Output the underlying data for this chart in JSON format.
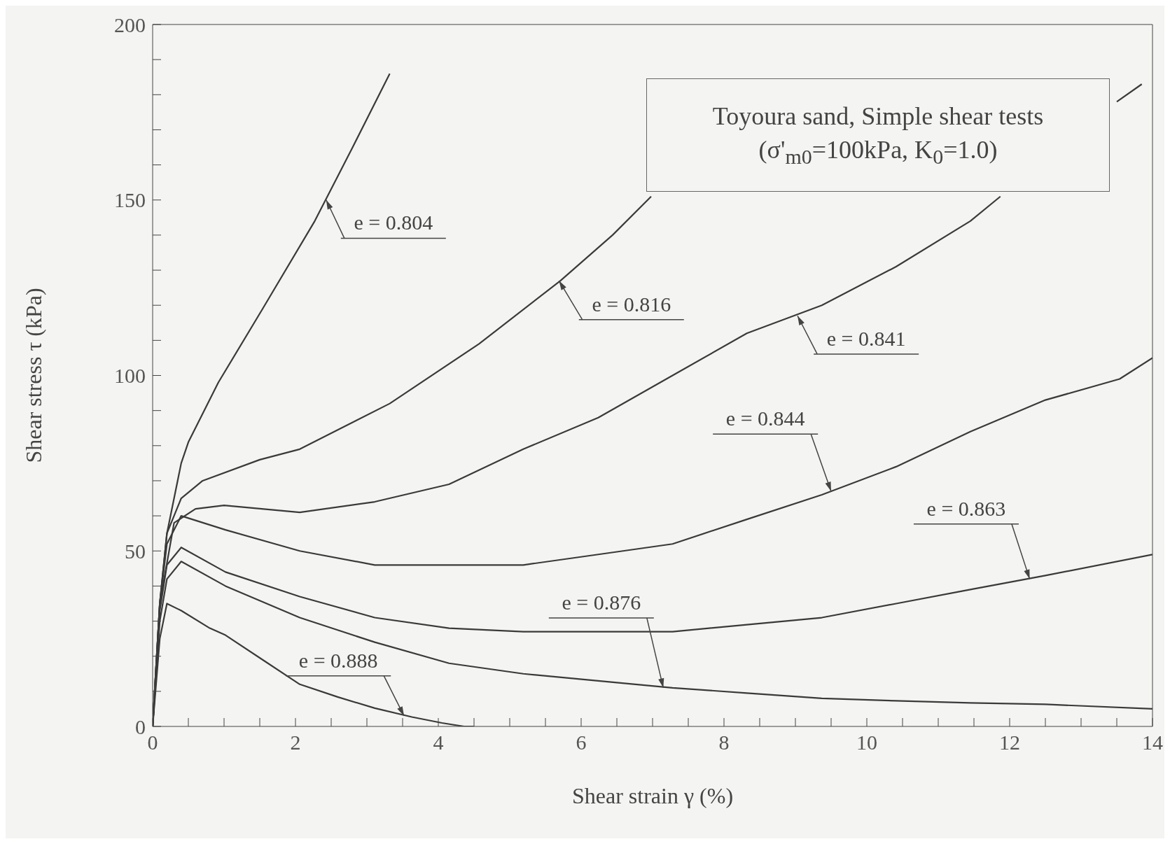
{
  "chart_data": {
    "type": "line",
    "title": "Toyoura sand, Simple shear tests",
    "subtitle": "(σ'$_{m0}$=100kPa, K$_{0}$=1.0)",
    "xlabel": "Shear strain γ (%)",
    "ylabel": "Shear stress τ (kPa)",
    "xlim": [
      0,
      14
    ],
    "ylim": [
      0,
      200
    ],
    "xticks": [
      0,
      {
        "value": 0.5,
        "label": null
      },
      {
        "value": 1,
        "label": null
      },
      {
        "value": 1.5,
        "label": null
      },
      2,
      {
        "value": 2.5,
        "label": null
      },
      {
        "value": 3,
        "label": null
      },
      {
        "value": 3.5,
        "label": null
      },
      4,
      {
        "value": 4.5,
        "label": null
      },
      {
        "value": 5,
        "label": null
      },
      {
        "value": 5.5,
        "label": null
      },
      6,
      {
        "value": 6.5,
        "label": null
      },
      {
        "value": 7,
        "label": null
      },
      {
        "value": 7.5,
        "label": null
      },
      8,
      {
        "value": 8.5,
        "label": null
      },
      {
        "value": 9,
        "label": null
      },
      {
        "value": 9.5,
        "label": null
      },
      10,
      {
        "value": 10.5,
        "label": null
      },
      {
        "value": 11,
        "label": null
      },
      {
        "value": 11.5,
        "label": null
      },
      12,
      {
        "value": 12.5,
        "label": null
      },
      {
        "value": 13,
        "label": null
      },
      {
        "value": 13.5,
        "label": null
      },
      14
    ],
    "yticks": [
      0,
      {
        "value": 10,
        "label": null
      },
      {
        "value": 20,
        "label": null
      },
      {
        "value": 30,
        "label": null
      },
      {
        "value": 40,
        "label": null
      },
      50,
      {
        "value": 60,
        "label": null
      },
      {
        "value": 70,
        "label": null
      },
      {
        "value": 80,
        "label": null
      },
      {
        "value": 90,
        "label": null
      },
      100,
      {
        "value": 110,
        "label": null
      },
      {
        "value": 120,
        "label": null
      },
      {
        "value": 130,
        "label": null
      },
      {
        "value": 140,
        "label": null
      },
      150,
      {
        "value": 160,
        "label": null
      },
      {
        "value": 170,
        "label": null
      },
      {
        "value": 180,
        "label": null
      },
      {
        "value": 190,
        "label": null
      },
      200
    ],
    "grid": false,
    "legend": false,
    "marker": "none",
    "line_style": "solid",
    "series": [
      {
        "color": "#3a3a3a",
        "x": [
          0,
          0.1,
          0.2,
          0.4,
          0.5,
          0.92,
          1.54,
          2.27,
          2.8,
          3.32
        ],
        "values": [
          0,
          35,
          55,
          75,
          81,
          98,
          119,
          144,
          165,
          186
        ]
      },
      {
        "color": "#3a3a3a",
        "x": [
          0,
          0.1,
          0.2,
          0.4,
          0.7,
          1.5,
          2.06,
          3.32,
          4.57,
          5.71,
          6.44,
          6.98
        ],
        "values": [
          0,
          35,
          55,
          65,
          70,
          76,
          79,
          92,
          109,
          127,
          140,
          151
        ]
      },
      {
        "color": "#3a3a3a",
        "x": [
          0,
          0.1,
          0.3,
          0.6,
          1,
          2.06,
          3.11,
          4.15,
          5.19,
          6.24,
          7.28,
          8.32,
          9.37,
          10.41,
          11.45,
          11.87,
          12.5,
          13.5,
          13.85
        ],
        "values": [
          0,
          35,
          58,
          62,
          63,
          61,
          64,
          69,
          79,
          88,
          100,
          112,
          120,
          131,
          144,
          151,
          null,
          178,
          183
        ]
      },
      {
        "color": "#3a3a3a",
        "x": [
          0,
          0.1,
          0.2,
          0.4,
          1.02,
          2.06,
          3.11,
          4.15,
          5.19,
          6.24,
          7.28,
          8.32,
          9.37,
          10.41,
          11.45,
          12.5,
          13.54,
          14
        ],
        "values": [
          0,
          35,
          52,
          60,
          56,
          50,
          46,
          46,
          46,
          49,
          52,
          59,
          66,
          74,
          84,
          93,
          99,
          105
        ]
      },
      {
        "color": "#3a3a3a",
        "x": [
          0,
          0.1,
          0.2,
          0.4,
          1.02,
          2.06,
          3.11,
          4.15,
          5.19,
          6.24,
          7.28,
          8.32,
          9.37,
          10.41,
          11.45,
          12.5,
          14
        ],
        "values": [
          0,
          33,
          46,
          51,
          44,
          37,
          31,
          28,
          27,
          27,
          27,
          29,
          31,
          35,
          39,
          43,
          49
        ]
      },
      {
        "color": "#3a3a3a",
        "x": [
          0,
          0.1,
          0.2,
          0.4,
          1.02,
          2.06,
          3.11,
          4.15,
          5.19,
          6.24,
          7.28,
          8.32,
          9.37,
          10.41,
          11.45,
          12.5,
          14
        ],
        "values": [
          0,
          30,
          42,
          47,
          40,
          31,
          24,
          18,
          15,
          13,
          11,
          9.5,
          8,
          7.3,
          6.7,
          6.3,
          5
        ]
      },
      {
        "color": "#3a3a3a",
        "x": [
          0,
          0.1,
          0.2,
          0.4,
          0.8,
          1.02,
          1.54,
          2.06,
          2.59,
          3.11,
          3.63,
          4.05,
          4.36,
          4.5
        ],
        "values": [
          0,
          25,
          35,
          33,
          28,
          26,
          19,
          12,
          8.4,
          5.2,
          2.7,
          1,
          0,
          0
        ]
      }
    ],
    "annotations": [
      {
        "text": "e = 0.804",
        "x": 2.43,
        "y": 150
      },
      {
        "text": "e = 0.816",
        "x": 5.69,
        "y": 127
      },
      {
        "text": "e = 0.841",
        "x": 9.03,
        "y": 117
      },
      {
        "text": "e = 0.844",
        "x": 9.5,
        "y": 67
      },
      {
        "text": "e = 0.863",
        "x": 12.28,
        "y": 42
      },
      {
        "text": "e = 0.876",
        "x": 7.15,
        "y": 11
      },
      {
        "text": "e = 0.888",
        "x": 3.52,
        "y": 3
      }
    ]
  }
}
